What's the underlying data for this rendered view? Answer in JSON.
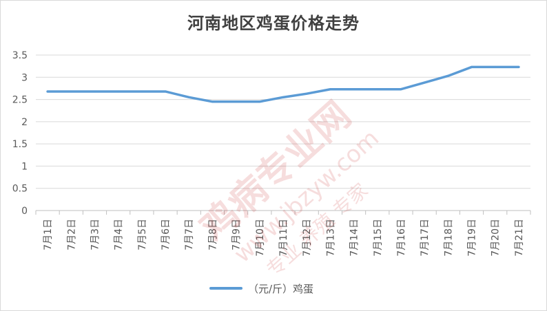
{
  "chart_data": {
    "type": "line",
    "title": "河南地区鸡蛋价格走势",
    "categories": [
      "7月1日",
      "7月2日",
      "7月3日",
      "7月4日",
      "7月5日",
      "7月6日",
      "7月7日",
      "7月8日",
      "7月9日",
      "7月10日",
      "7月11日",
      "7月12日",
      "7月13日",
      "7月14日",
      "7月15日",
      "7月16日",
      "7月17日",
      "7月18日",
      "7月19日",
      "7月20日",
      "7月21日"
    ],
    "series": [
      {
        "name": "（元/斤）鸡蛋",
        "values": [
          2.68,
          2.68,
          2.68,
          2.68,
          2.68,
          2.68,
          2.55,
          2.45,
          2.45,
          2.45,
          2.55,
          2.63,
          2.73,
          2.73,
          2.73,
          2.73,
          2.88,
          3.03,
          3.23,
          3.23,
          3.23
        ]
      }
    ],
    "ylim": [
      0,
      3.5
    ],
    "yticks": [
      "0",
      "0.5",
      "1",
      "1.5",
      "2",
      "2.5",
      "3",
      "3.5"
    ],
    "grid": true,
    "legend": "bottom",
    "colors": {
      "series": "#5b9bd5",
      "grid": "#d9d9d9",
      "axis_text": "#595959"
    }
  },
  "watermark": {
    "brand": "鸡病专业网",
    "url": "www.jbzyw.com",
    "slogan": "专业 养殖 专家"
  }
}
